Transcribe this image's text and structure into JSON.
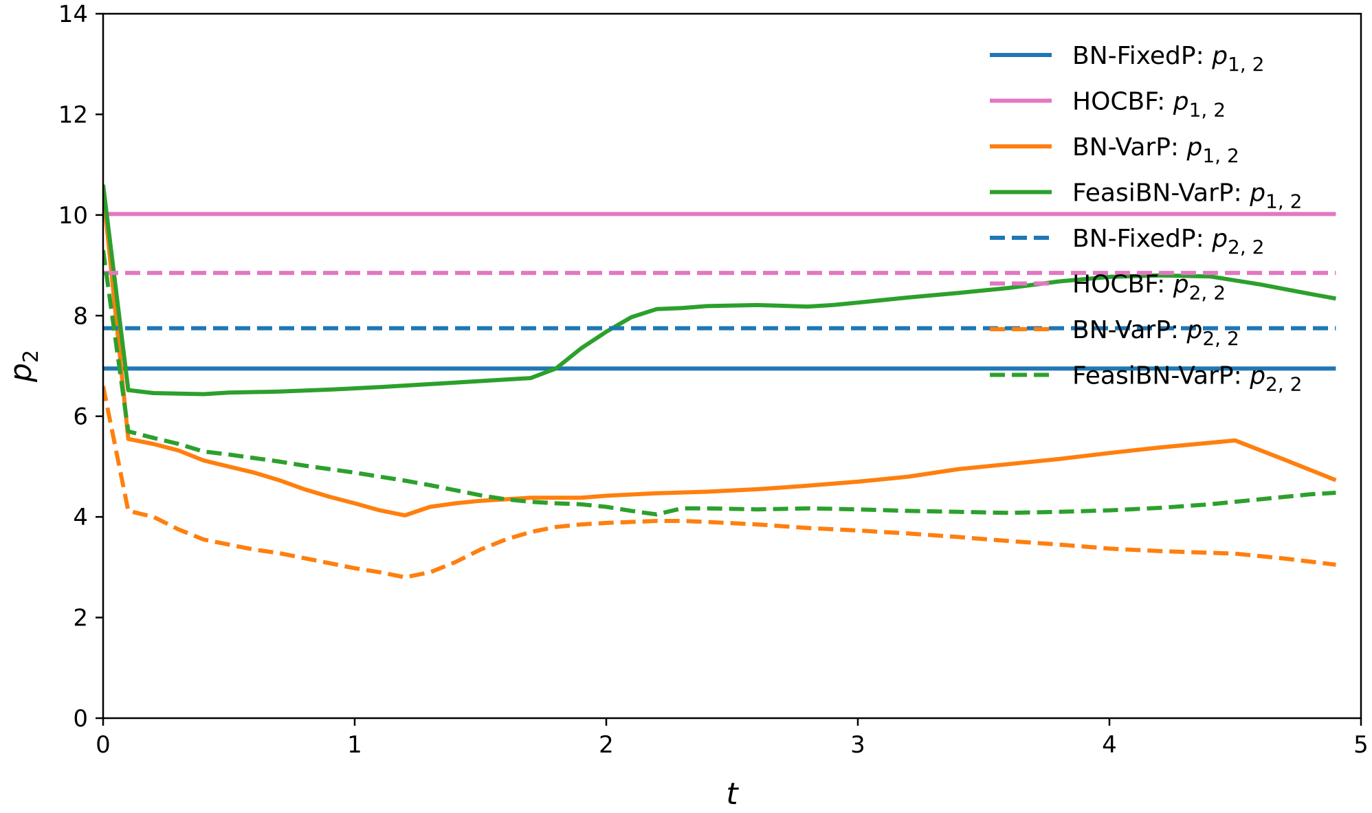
{
  "chart_data": {
    "type": "line",
    "xlabel": "t",
    "ylabel_main": "p",
    "ylabel_sub": "2",
    "xlim": [
      0,
      5
    ],
    "ylim": [
      0,
      14
    ],
    "xticks": [
      0,
      1,
      2,
      3,
      4,
      5
    ],
    "yticks": [
      0,
      2,
      4,
      6,
      8,
      10,
      12,
      14
    ],
    "grid": false,
    "legend_position": "top-right",
    "colors": {
      "blue": "#1f77b4",
      "pink": "#e377c2",
      "orange": "#ff7f0e",
      "green": "#2ca02c"
    },
    "series": [
      {
        "label_main": "BN-FixedP: ",
        "label_var": "p",
        "label_sub": "1, 2",
        "color": "#1f77b4",
        "style": "solid",
        "x": [
          0,
          4.9
        ],
        "y": [
          6.95,
          6.95
        ]
      },
      {
        "label_main": "HOCBF: ",
        "label_var": "p",
        "label_sub": "1, 2",
        "color": "#e377c2",
        "style": "solid",
        "x": [
          0,
          4.9
        ],
        "y": [
          10.02,
          10.02
        ]
      },
      {
        "label_main": "BN-VarP: ",
        "label_var": "p",
        "label_sub": "1, 2",
        "color": "#ff7f0e",
        "style": "solid",
        "x": [
          0,
          0.1,
          0.2,
          0.3,
          0.4,
          0.5,
          0.6,
          0.7,
          0.8,
          0.9,
          1.0,
          1.1,
          1.2,
          1.3,
          1.4,
          1.5,
          1.6,
          1.7,
          1.8,
          1.9,
          2.0,
          2.2,
          2.4,
          2.6,
          2.8,
          3.0,
          3.2,
          3.4,
          3.6,
          3.8,
          4.0,
          4.2,
          4.5,
          4.7,
          4.9
        ],
        "y": [
          10.5,
          5.55,
          5.45,
          5.32,
          5.12,
          5.0,
          4.88,
          4.73,
          4.55,
          4.4,
          4.27,
          4.13,
          4.03,
          4.2,
          4.27,
          4.32,
          4.35,
          4.38,
          4.38,
          4.38,
          4.42,
          4.47,
          4.5,
          4.55,
          4.62,
          4.7,
          4.8,
          4.95,
          5.05,
          5.15,
          5.27,
          5.38,
          5.52,
          5.13,
          4.73
        ]
      },
      {
        "label_main": "FeasiBN-VarP: ",
        "label_var": "p",
        "label_sub": "1, 2",
        "color": "#2ca02c",
        "style": "solid",
        "x": [
          0,
          0.1,
          0.2,
          0.4,
          0.5,
          0.7,
          0.9,
          1.1,
          1.3,
          1.5,
          1.7,
          1.8,
          1.9,
          2.0,
          2.1,
          2.2,
          2.3,
          2.4,
          2.6,
          2.8,
          2.9,
          3.0,
          3.2,
          3.4,
          3.6,
          3.8,
          4.0,
          4.2,
          4.4,
          4.6,
          4.8,
          4.9
        ],
        "y": [
          10.6,
          6.52,
          6.46,
          6.44,
          6.47,
          6.49,
          6.53,
          6.58,
          6.64,
          6.7,
          6.76,
          6.95,
          7.35,
          7.68,
          7.97,
          8.13,
          8.15,
          8.19,
          8.21,
          8.18,
          8.21,
          8.26,
          8.36,
          8.45,
          8.55,
          8.68,
          8.77,
          8.8,
          8.78,
          8.62,
          8.43,
          8.34
        ]
      },
      {
        "label_main": "BN-FixedP: ",
        "label_var": "p",
        "label_sub": "2, 2",
        "color": "#1f77b4",
        "style": "dashed",
        "x": [
          0,
          4.9
        ],
        "y": [
          7.75,
          7.75
        ]
      },
      {
        "label_main": "HOCBF: ",
        "label_var": "p",
        "label_sub": "2, 2",
        "color": "#e377c2",
        "style": "dashed",
        "x": [
          0,
          4.9
        ],
        "y": [
          8.85,
          8.85
        ]
      },
      {
        "label_main": "BN-VarP: ",
        "label_var": "p",
        "label_sub": "2, 2",
        "color": "#ff7f0e",
        "style": "dashed",
        "x": [
          0,
          0.1,
          0.2,
          0.3,
          0.4,
          0.5,
          0.6,
          0.7,
          0.8,
          0.9,
          1.0,
          1.1,
          1.2,
          1.3,
          1.4,
          1.5,
          1.6,
          1.7,
          1.8,
          1.9,
          2.0,
          2.1,
          2.2,
          2.3,
          2.4,
          2.6,
          2.8,
          3.0,
          3.2,
          3.4,
          3.6,
          3.8,
          4.0,
          4.2,
          4.5,
          4.7,
          4.9
        ],
        "y": [
          6.6,
          4.12,
          4.0,
          3.75,
          3.55,
          3.45,
          3.35,
          3.28,
          3.18,
          3.08,
          2.98,
          2.9,
          2.8,
          2.9,
          3.1,
          3.35,
          3.55,
          3.7,
          3.8,
          3.85,
          3.88,
          3.9,
          3.92,
          3.92,
          3.9,
          3.85,
          3.78,
          3.73,
          3.67,
          3.6,
          3.52,
          3.45,
          3.37,
          3.32,
          3.27,
          3.17,
          3.05
        ]
      },
      {
        "label_main": "FeasiBN-VarP: ",
        "label_var": "p",
        "label_sub": "2, 2",
        "color": "#2ca02c",
        "style": "dashed",
        "x": [
          0,
          0.1,
          0.2,
          0.3,
          0.4,
          0.5,
          0.6,
          0.7,
          0.8,
          0.9,
          1.0,
          1.1,
          1.2,
          1.3,
          1.4,
          1.5,
          1.6,
          1.7,
          1.8,
          1.9,
          2.0,
          2.1,
          2.2,
          2.3,
          2.4,
          2.6,
          2.8,
          3.0,
          3.2,
          3.4,
          3.6,
          3.8,
          4.0,
          4.2,
          4.4,
          4.6,
          4.8,
          4.9
        ],
        "y": [
          9.3,
          5.7,
          5.57,
          5.45,
          5.3,
          5.24,
          5.17,
          5.1,
          5.02,
          4.95,
          4.88,
          4.8,
          4.72,
          4.63,
          4.53,
          4.43,
          4.35,
          4.3,
          4.27,
          4.25,
          4.2,
          4.12,
          4.05,
          4.17,
          4.17,
          4.15,
          4.17,
          4.15,
          4.12,
          4.1,
          4.08,
          4.1,
          4.13,
          4.18,
          4.25,
          4.35,
          4.45,
          4.48
        ]
      }
    ]
  }
}
